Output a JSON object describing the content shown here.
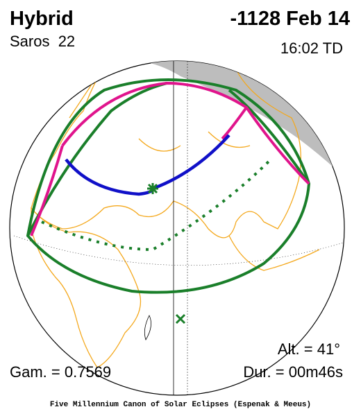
{
  "header": {
    "type": "Hybrid",
    "date": "-1128 Feb 14",
    "saros": "Saros  22",
    "time": "16:02 TD"
  },
  "footer": {
    "altitude": "Alt. = 41°",
    "gamma": "Gam. = 0.7569",
    "duration": "Dur. = 00m46s",
    "credit": "Five Millennium Canon of Solar Eclipses (Espenak & Meeus)"
  }
}
